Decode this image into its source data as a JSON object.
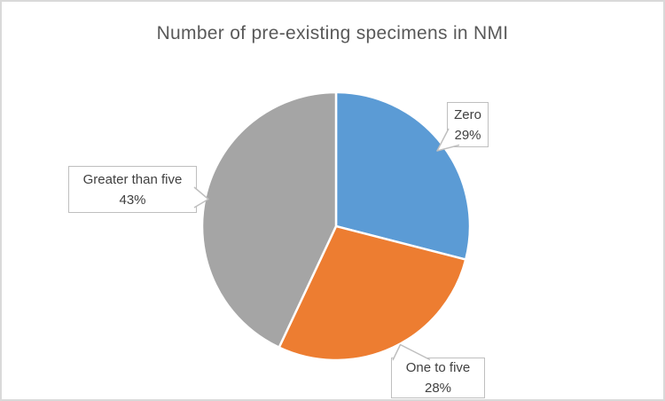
{
  "frame": {
    "background": "#ffffff",
    "border_color": "#d9d9d9"
  },
  "chart_data": {
    "type": "pie",
    "title": "Number of pre-existing specimens in NMI",
    "title_color": "#595959",
    "legend": "none",
    "label_style": "callout-with-leader",
    "start_angle_deg": 0,
    "direction": "clockwise",
    "separator_color": "#ffffff",
    "callout_border_color": "#bfbfbf",
    "callout_text_color": "#404040",
    "slices": [
      {
        "label": "Zero",
        "value": 29,
        "pct_label": "29%",
        "color": "#5b9bd5"
      },
      {
        "label": "One to five",
        "value": 28,
        "pct_label": "28%",
        "color": "#ed7d31"
      },
      {
        "label": "Greater than five",
        "value": 43,
        "pct_label": "43%",
        "color": "#a5a5a5"
      }
    ]
  }
}
